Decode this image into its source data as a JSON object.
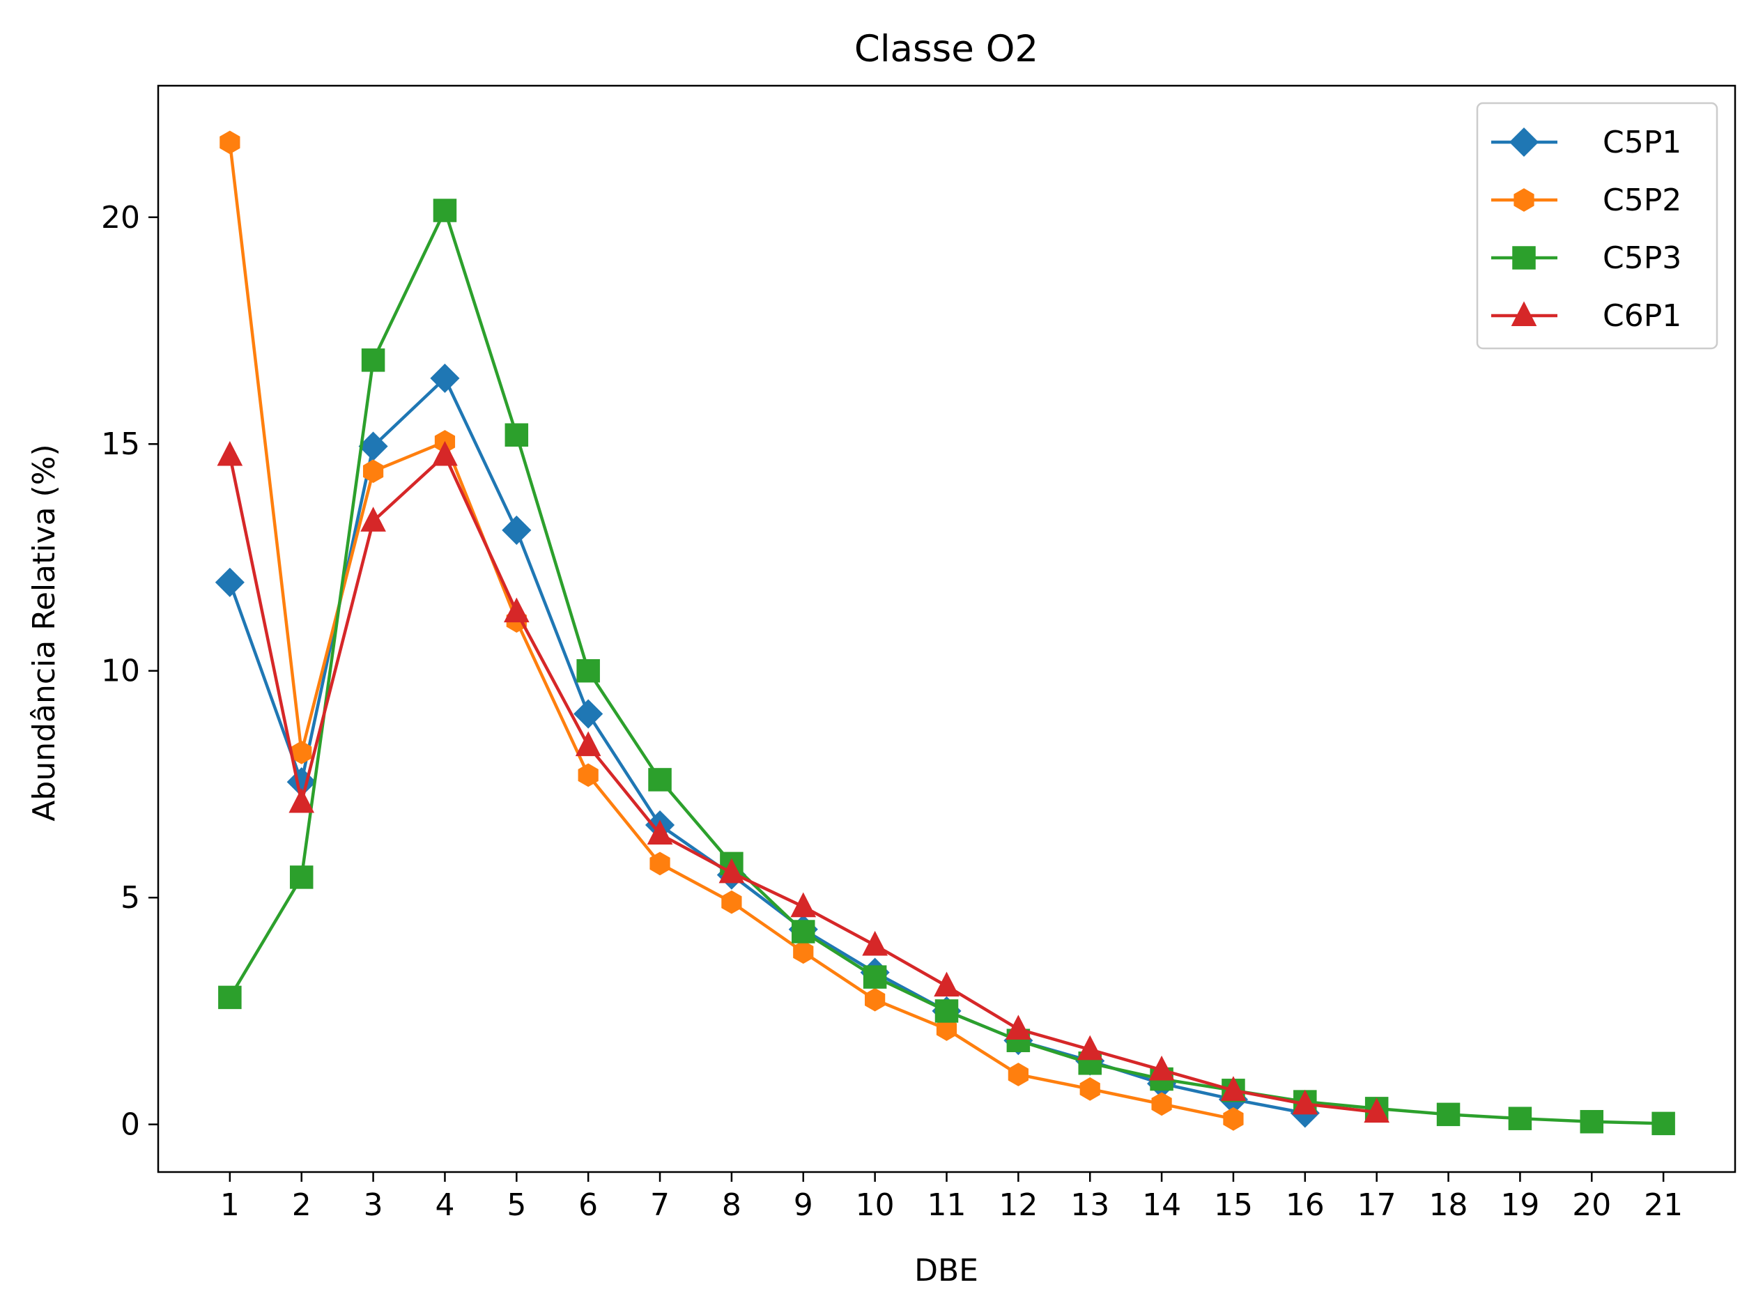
{
  "chart_data": {
    "type": "line",
    "title": "Classe O2",
    "xlabel": "DBE",
    "ylabel": "Abundância Relativa (%)",
    "xlim": [
      0,
      22
    ],
    "ylim": [
      -1.05,
      22.9
    ],
    "xticks": [
      1,
      2,
      3,
      4,
      5,
      6,
      7,
      8,
      9,
      10,
      11,
      12,
      13,
      14,
      15,
      16,
      17,
      18,
      19,
      20,
      21
    ],
    "yticks": [
      0,
      5,
      10,
      15,
      20
    ],
    "grid": false,
    "legend_position": "top-right",
    "series": [
      {
        "name": "C5P1",
        "color": "#1f77b4",
        "marker": "diamond",
        "x": [
          1,
          2,
          3,
          4,
          5,
          6,
          7,
          8,
          9,
          10,
          11,
          12,
          13,
          14,
          15,
          16
        ],
        "y": [
          11.95,
          7.55,
          14.95,
          16.45,
          13.1,
          9.05,
          6.6,
          5.5,
          4.3,
          3.35,
          2.5,
          1.85,
          1.4,
          0.9,
          0.55,
          0.25
        ]
      },
      {
        "name": "C5P2",
        "color": "#ff7f0e",
        "marker": "hexagon",
        "x": [
          1,
          2,
          3,
          4,
          5,
          6,
          7,
          8,
          9,
          10,
          11,
          12,
          13,
          14,
          15
        ],
        "y": [
          21.65,
          8.2,
          14.4,
          15.05,
          11.1,
          7.7,
          5.75,
          4.9,
          3.8,
          2.75,
          2.1,
          1.1,
          0.78,
          0.45,
          0.12
        ]
      },
      {
        "name": "C5P3",
        "color": "#2ca02c",
        "marker": "square",
        "x": [
          1,
          2,
          3,
          4,
          5,
          6,
          7,
          8,
          9,
          10,
          11,
          12,
          13,
          14,
          15,
          16,
          17,
          18,
          19,
          20,
          21
        ],
        "y": [
          2.8,
          5.45,
          16.85,
          20.15,
          15.2,
          10.0,
          7.6,
          5.75,
          4.25,
          3.25,
          2.5,
          1.85,
          1.35,
          1.0,
          0.75,
          0.5,
          0.35,
          0.22,
          0.13,
          0.06,
          0.02
        ]
      },
      {
        "name": "C6P1",
        "color": "#d62728",
        "marker": "triangle",
        "x": [
          1,
          2,
          3,
          4,
          5,
          6,
          7,
          8,
          9,
          10,
          11,
          12,
          13,
          14,
          15,
          16,
          17
        ],
        "y": [
          14.75,
          7.1,
          13.3,
          14.75,
          11.3,
          8.35,
          6.4,
          5.55,
          4.8,
          3.95,
          3.05,
          2.1,
          1.65,
          1.2,
          0.75,
          0.45,
          0.27
        ]
      }
    ]
  }
}
